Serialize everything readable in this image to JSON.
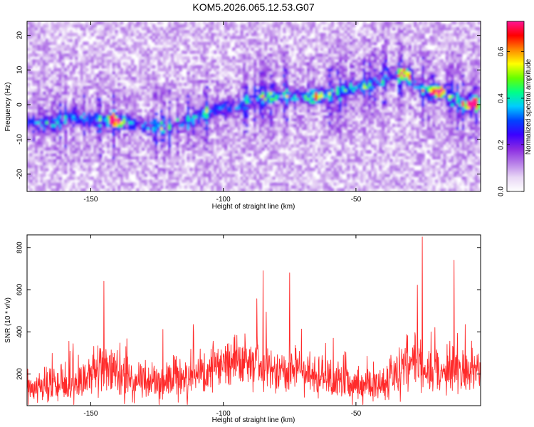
{
  "figure_title": "KOM5.2026.065.12.53.G07",
  "chart_data": [
    {
      "type": "heatmap",
      "title": "KOM5.2026.065.12.53.G07",
      "xlabel": "Height of straight line (km)",
      "ylabel": "Frequency (Hz)",
      "xlim": [
        -174,
        -3
      ],
      "ylim": [
        -25,
        24
      ],
      "xticks": [
        -150,
        -100,
        -50
      ],
      "yticks": [
        20,
        10,
        0,
        -10,
        -20
      ],
      "colorbar": {
        "label": "Normalized spectral amplitude",
        "range": [
          0.0,
          0.73
        ],
        "ticks": [
          "0.0",
          "0.2",
          "0.4",
          "0.6"
        ],
        "tick_values": [
          0.0,
          0.2,
          0.4,
          0.6
        ],
        "colors": [
          "#ffffff",
          "#e8d6f5",
          "#b77ee8",
          "#8a2be2",
          "#3b00ff",
          "#0044ff",
          "#00ccff",
          "#00ff88",
          "#66ff00",
          "#ffff00",
          "#ff8800",
          "#ff0000",
          "#ff1493"
        ]
      },
      "ridge": {
        "x": [
          -174,
          -165,
          -158,
          -150,
          -143,
          -137,
          -130,
          -125,
          -120,
          -112,
          -105,
          -100,
          -95,
          -88,
          -80,
          -72,
          -65,
          -58,
          -50,
          -45,
          -38,
          -32,
          -28,
          -24,
          -20,
          -15,
          -10,
          -6,
          -3
        ],
        "y": [
          -5,
          -5.5,
          -3,
          -4.5,
          -5,
          -5,
          -6,
          -6.5,
          -6.5,
          -4.5,
          -2,
          -1,
          -1,
          2,
          2.5,
          2,
          2.5,
          3.5,
          5,
          5.5,
          8,
          9,
          6,
          4,
          3.5,
          3,
          0,
          -0.5,
          0.5
        ]
      },
      "peaks": [
        {
          "x": -141,
          "y": -4.5,
          "amp": 0.7
        },
        {
          "x": -65,
          "y": 2.5,
          "amp": 0.55
        },
        {
          "x": -31,
          "y": 9,
          "amp": 0.5
        },
        {
          "x": -19,
          "y": 4,
          "amp": 0.7
        },
        {
          "x": -6,
          "y": 0.5,
          "amp": 0.73
        }
      ]
    },
    {
      "type": "line",
      "xlabel": "Height of straight line (km)",
      "ylabel": "SNR (10 * v/v)",
      "xlim": [
        -174,
        -3
      ],
      "ylim": [
        50,
        860
      ],
      "xticks": [
        -150,
        -100,
        -50
      ],
      "yticks": [
        200,
        400,
        600,
        800
      ],
      "color": "#ff2a2a",
      "envelope": {
        "x": [
          -174,
          -165,
          -155,
          -148,
          -144,
          -140,
          -130,
          -120,
          -110,
          -100,
          -95,
          -88,
          -80,
          -75,
          -68,
          -60,
          -52,
          -45,
          -38,
          -32,
          -28,
          -25,
          -20,
          -15,
          -10,
          -5,
          -3
        ],
        "y": [
          170,
          210,
          200,
          300,
          370,
          260,
          210,
          230,
          280,
          330,
          360,
          340,
          300,
          320,
          300,
          240,
          200,
          210,
          230,
          300,
          400,
          330,
          250,
          330,
          260,
          310,
          300
        ]
      },
      "spikes": [
        {
          "x": -145,
          "y": 640
        },
        {
          "x": -85,
          "y": 690
        },
        {
          "x": -75,
          "y": 680
        },
        {
          "x": -25,
          "y": 850
        },
        {
          "x": -13,
          "y": 740
        }
      ]
    }
  ]
}
